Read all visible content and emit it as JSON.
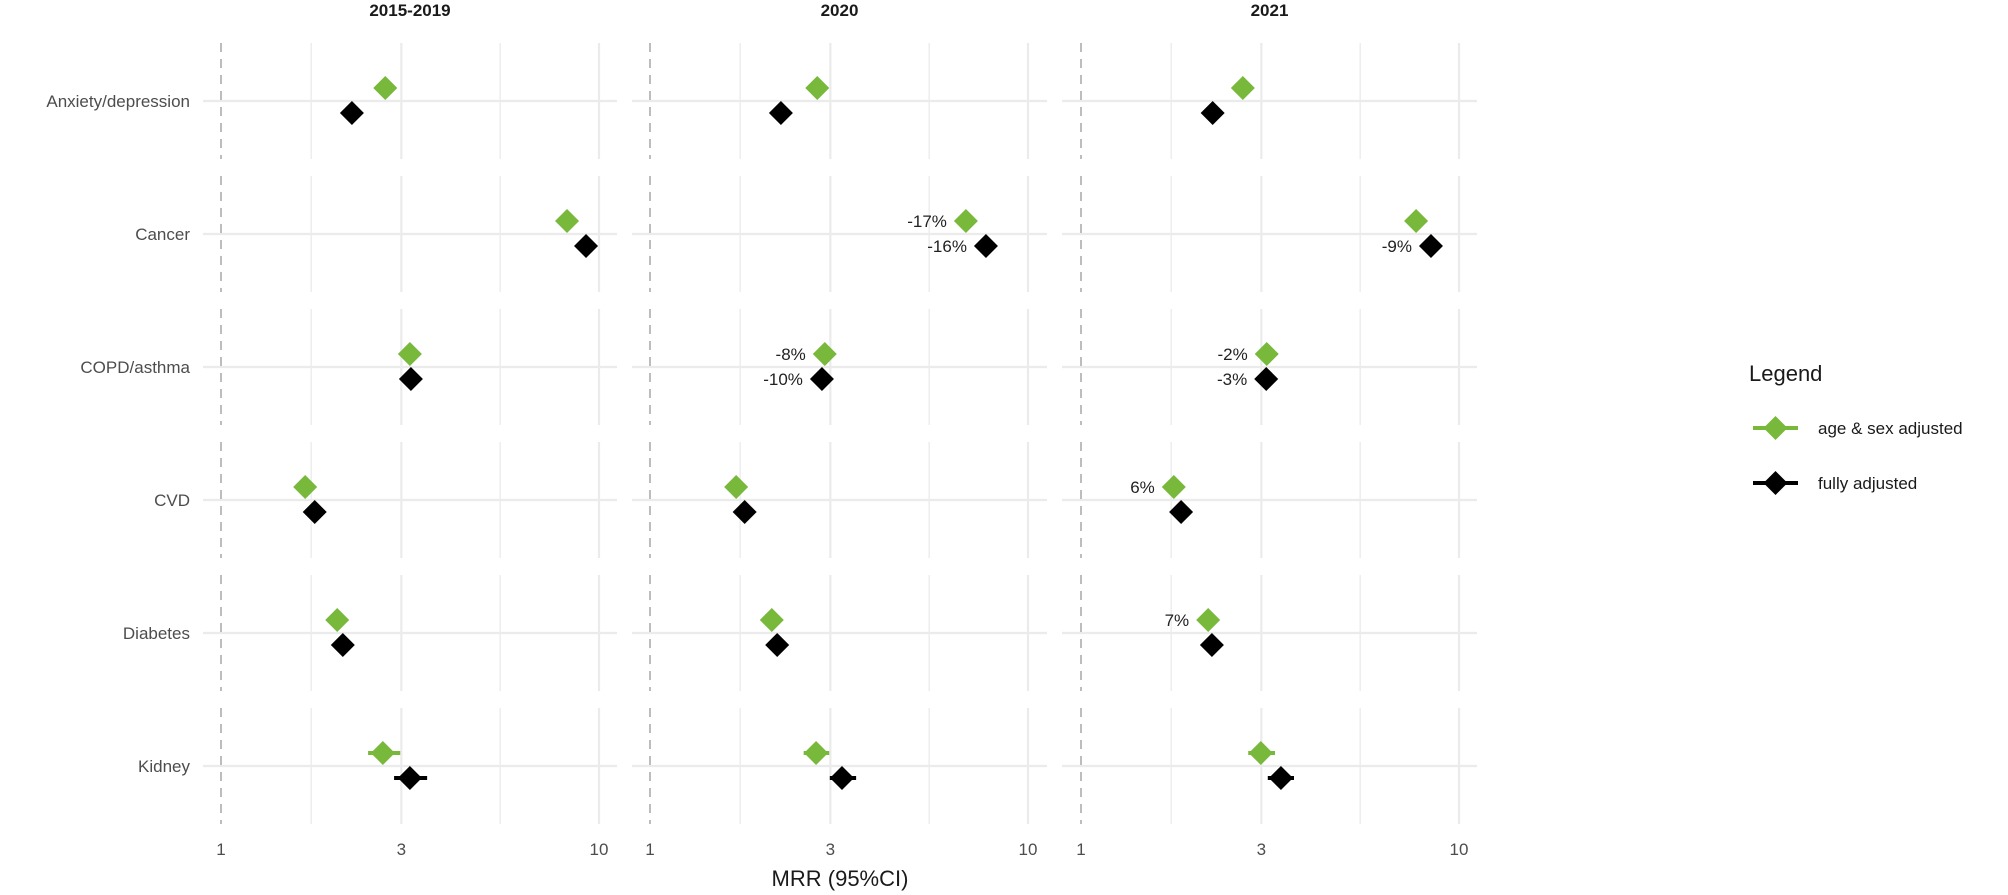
{
  "chart_data": {
    "type": "scatter",
    "subtype": "forest-plot",
    "title": "",
    "xlabel": "MRR (95%CI)",
    "ylabel": "",
    "x_scale": "log10",
    "xlim": [
      0.9,
      11.2
    ],
    "x_ticks": [
      1,
      3,
      10
    ],
    "x_tick_labels": [
      "1",
      "3",
      "10"
    ],
    "x_minor_ticks": [
      1.732,
      5.477
    ],
    "reference_line": 1,
    "grid": true,
    "panels": [
      "2015-2019",
      "2020",
      "2021"
    ],
    "categories": [
      "Anxiety/depression",
      "Cancer",
      "COPD/asthma",
      "CVD",
      "Diabetes",
      "Kidney"
    ],
    "legend": {
      "title": "Legend",
      "placement": "right",
      "entries": [
        {
          "name": "age & sex adjusted",
          "color": "#78b83b"
        },
        {
          "name": "fully adjusted",
          "color": "#000000"
        }
      ]
    },
    "series": [
      {
        "name": "age & sex adjusted",
        "color": "#78b83b",
        "panels": {
          "2015-2019": [
            {
              "category": "Anxiety/depression",
              "value": 2.72,
              "lo": 2.68,
              "hi": 2.77,
              "label": ""
            },
            {
              "category": "Cancer",
              "value": 8.23,
              "lo": 8.1,
              "hi": 8.36,
              "label": ""
            },
            {
              "category": "COPD/asthma",
              "value": 3.16,
              "lo": 3.12,
              "hi": 3.2,
              "label": ""
            },
            {
              "category": "CVD",
              "value": 1.67,
              "lo": 1.65,
              "hi": 1.69,
              "label": ""
            },
            {
              "category": "Diabetes",
              "value": 2.03,
              "lo": 2.0,
              "hi": 2.06,
              "label": ""
            },
            {
              "category": "Kidney",
              "value": 2.68,
              "lo": 2.45,
              "hi": 2.98,
              "label": ""
            }
          ],
          "2020": [
            {
              "category": "Anxiety/depression",
              "value": 2.77,
              "lo": 2.73,
              "hi": 2.81,
              "label": ""
            },
            {
              "category": "Cancer",
              "value": 6.85,
              "lo": 6.74,
              "hi": 6.96,
              "label": "-17%"
            },
            {
              "category": "COPD/asthma",
              "value": 2.9,
              "lo": 2.86,
              "hi": 2.94,
              "label": "-8%"
            },
            {
              "category": "CVD",
              "value": 1.69,
              "lo": 1.67,
              "hi": 1.71,
              "label": ""
            },
            {
              "category": "Diabetes",
              "value": 2.1,
              "lo": 2.07,
              "hi": 2.13,
              "label": ""
            },
            {
              "category": "Kidney",
              "value": 2.75,
              "lo": 2.55,
              "hi": 2.98,
              "label": ""
            }
          ],
          "2021": [
            {
              "category": "Anxiety/depression",
              "value": 2.68,
              "lo": 2.64,
              "hi": 2.72,
              "label": ""
            },
            {
              "category": "Cancer",
              "value": 7.7,
              "lo": 7.58,
              "hi": 7.82,
              "label": ""
            },
            {
              "category": "COPD/asthma",
              "value": 3.1,
              "lo": 3.06,
              "hi": 3.14,
              "label": "-2%"
            },
            {
              "category": "CVD",
              "value": 1.76,
              "lo": 1.74,
              "hi": 1.78,
              "label": "6%"
            },
            {
              "category": "Diabetes",
              "value": 2.17,
              "lo": 2.14,
              "hi": 2.2,
              "label": "7%"
            },
            {
              "category": "Kidney",
              "value": 2.99,
              "lo": 2.77,
              "hi": 3.26,
              "label": ""
            }
          ]
        }
      },
      {
        "name": "fully adjusted",
        "color": "#000000",
        "panels": {
          "2015-2019": [
            {
              "category": "Anxiety/depression",
              "value": 2.22,
              "lo": 2.19,
              "hi": 2.25,
              "label": ""
            },
            {
              "category": "Cancer",
              "value": 9.24,
              "lo": 9.1,
              "hi": 9.38,
              "label": ""
            },
            {
              "category": "COPD/asthma",
              "value": 3.18,
              "lo": 3.14,
              "hi": 3.22,
              "label": ""
            },
            {
              "category": "CVD",
              "value": 1.77,
              "lo": 1.75,
              "hi": 1.79,
              "label": ""
            },
            {
              "category": "Diabetes",
              "value": 2.1,
              "lo": 2.07,
              "hi": 2.13,
              "label": ""
            },
            {
              "category": "Kidney",
              "value": 3.16,
              "lo": 2.87,
              "hi": 3.51,
              "label": ""
            }
          ],
          "2020": [
            {
              "category": "Anxiety/depression",
              "value": 2.22,
              "lo": 2.19,
              "hi": 2.25,
              "label": ""
            },
            {
              "category": "Cancer",
              "value": 7.74,
              "lo": 7.62,
              "hi": 7.86,
              "label": "-16%"
            },
            {
              "category": "COPD/asthma",
              "value": 2.85,
              "lo": 2.81,
              "hi": 2.89,
              "label": "-10%"
            },
            {
              "category": "CVD",
              "value": 1.78,
              "lo": 1.76,
              "hi": 1.8,
              "label": ""
            },
            {
              "category": "Diabetes",
              "value": 2.17,
              "lo": 2.14,
              "hi": 2.2,
              "label": ""
            },
            {
              "category": "Kidney",
              "value": 3.22,
              "lo": 2.99,
              "hi": 3.51,
              "label": ""
            }
          ],
          "2021": [
            {
              "category": "Anxiety/depression",
              "value": 2.23,
              "lo": 2.2,
              "hi": 2.26,
              "label": ""
            },
            {
              "category": "Cancer",
              "value": 8.43,
              "lo": 8.3,
              "hi": 8.56,
              "label": "-9%"
            },
            {
              "category": "COPD/asthma",
              "value": 3.09,
              "lo": 3.05,
              "hi": 3.13,
              "label": "-3%"
            },
            {
              "category": "CVD",
              "value": 1.84,
              "lo": 1.82,
              "hi": 1.86,
              "label": ""
            },
            {
              "category": "Diabetes",
              "value": 2.22,
              "lo": 2.19,
              "hi": 2.25,
              "label": ""
            },
            {
              "category": "Kidney",
              "value": 3.38,
              "lo": 3.12,
              "hi": 3.66,
              "label": ""
            }
          ]
        }
      }
    ]
  }
}
